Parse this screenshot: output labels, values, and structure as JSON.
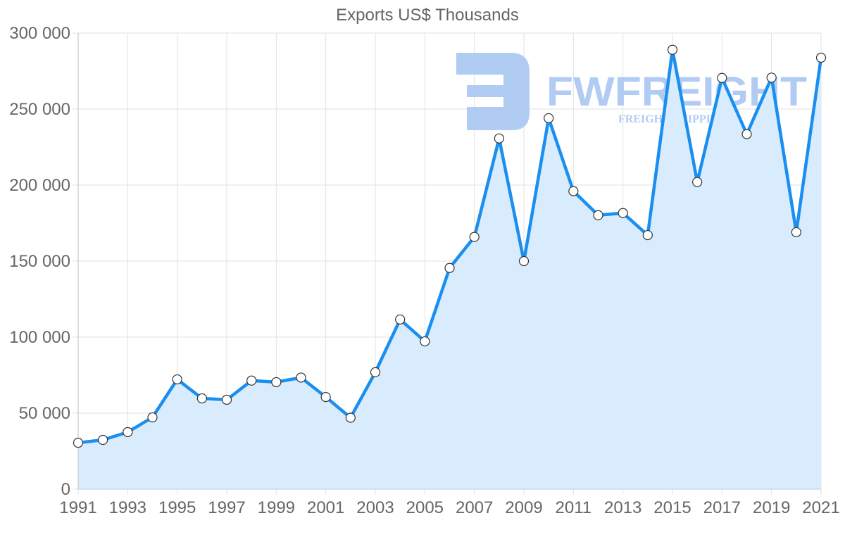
{
  "chart_data": {
    "type": "line",
    "title": "Exports US$ Thousands",
    "xlabel": "",
    "ylabel": "",
    "ylim": [
      0,
      300000
    ],
    "yticks": [
      0,
      50000,
      100000,
      150000,
      200000,
      250000,
      300000
    ],
    "ytick_labels": [
      "0",
      "50 000",
      "100 000",
      "150 000",
      "200 000",
      "250 000",
      "300 000"
    ],
    "xtick_labels": [
      "1991",
      "1993",
      "1995",
      "1997",
      "1999",
      "2001",
      "2003",
      "2005",
      "2007",
      "2009",
      "2011",
      "2013",
      "2015",
      "2017",
      "2019",
      "2021"
    ],
    "grid": true,
    "legend": null,
    "fill": true,
    "x": [
      1991,
      1992,
      1993,
      1994,
      1995,
      1996,
      1997,
      1998,
      1999,
      2000,
      2001,
      2002,
      2003,
      2004,
      2005,
      2006,
      2007,
      2008,
      2009,
      2010,
      2011,
      2012,
      2013,
      2014,
      2015,
      2016,
      2017,
      2018,
      2019,
      2020,
      2021
    ],
    "series": [
      {
        "name": "Exports",
        "values": [
          30500,
          32400,
          37500,
          47200,
          72200,
          59700,
          58800,
          71400,
          70400,
          73400,
          60600,
          47000,
          76900,
          111600,
          97200,
          145500,
          165900,
          230700,
          150000,
          244000,
          196000,
          180200,
          181600,
          167100,
          289000,
          202000,
          270500,
          233500,
          270700,
          169000,
          283800
        ]
      }
    ]
  },
  "colors": {
    "line": "#1a8ff0",
    "fill": "#d9ecfd",
    "point_fill": "#ffffff",
    "point_stroke": "#333333",
    "grid": "#e2e2e2",
    "text": "#666666",
    "watermark": "#a9c6f2"
  },
  "watermark": {
    "brand": "FWFREIGHT",
    "tagline": "FREIGHT SHIPPING"
  }
}
